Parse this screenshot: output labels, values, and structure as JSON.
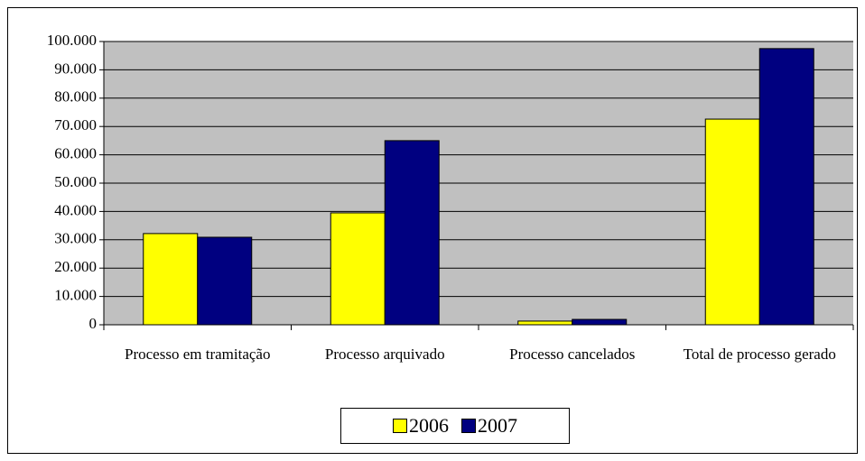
{
  "chart_data": {
    "type": "bar",
    "categories": [
      "Processo em tramitação",
      "Processo arquivado",
      "Processo cancelados",
      "Total de processo gerado"
    ],
    "series": [
      {
        "name": "2006",
        "color": "#ffff00",
        "values": [
          32200,
          39500,
          1300,
          72600
        ]
      },
      {
        "name": "2007",
        "color": "#000080",
        "values": [
          30900,
          65000,
          1900,
          97500
        ]
      }
    ],
    "ylim": [
      0,
      100000
    ],
    "yticks": [
      0,
      {
        "value": 10000,
        "label": "10.000"
      },
      {
        "value": 20000,
        "label": "20.000"
      },
      {
        "value": 30000,
        "label": "30.000"
      },
      {
        "value": 40000,
        "label": "40.000"
      },
      {
        "value": 50000,
        "label": "50.000"
      },
      {
        "value": 60000,
        "label": "60.000"
      },
      {
        "value": 70000,
        "label": "70.000"
      },
      {
        "value": 80000,
        "label": "80.000"
      },
      {
        "value": 90000,
        "label": "90.000"
      },
      {
        "value": 100000,
        "label": "100.000"
      }
    ],
    "grid": true,
    "plot_background": "#c0c0c0",
    "legend": "bottom"
  }
}
